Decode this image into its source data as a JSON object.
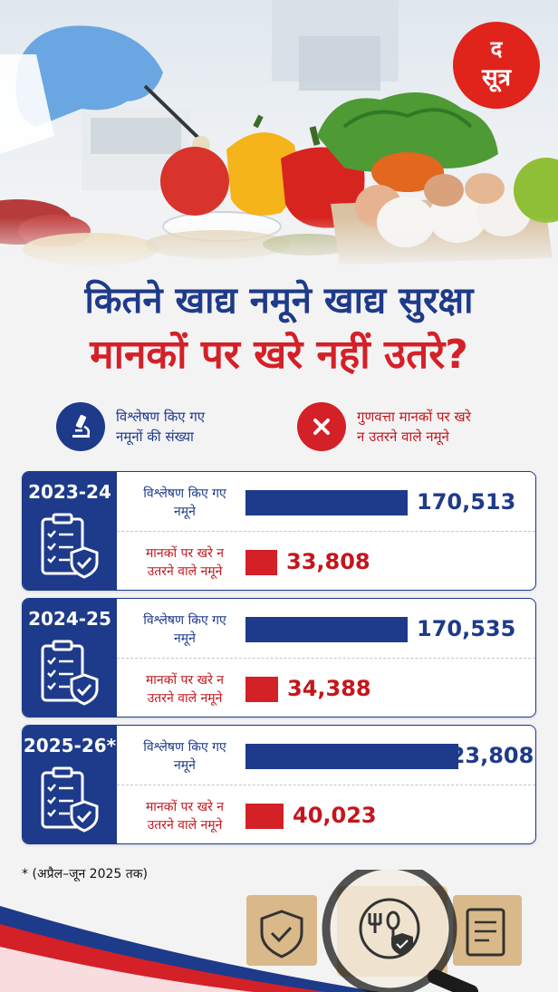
{
  "logo": {
    "top": "द",
    "bottom": "सूत्र"
  },
  "title": {
    "line1": "कितने खाद्य नमूने खाद्य सुरक्षा",
    "line2": "मानकों पर खरे नहीं उतरे?"
  },
  "legend": {
    "analyzed": {
      "icon": "microscope-icon",
      "line1": "विश्लेषण किए गए",
      "line2": "नमूनों की संख्या"
    },
    "failed": {
      "icon": "cross-icon",
      "line1": "गुणवत्ता मानकों पर खरे",
      "line2": "न उतरने वाले नमूने"
    }
  },
  "colors": {
    "blue": "#1e3a8a",
    "red": "#d42027"
  },
  "chart_data": {
    "type": "bar",
    "orientation": "horizontal",
    "title": "कितने खाद्य नमूने खाद्य सुरक्षा मानकों पर खरे नहीं उतरे?",
    "categories": [
      "2023-24",
      "2024-25",
      "2025-26*"
    ],
    "series": [
      {
        "name": "विश्लेषण किए गए नमूने",
        "label_line1": "विश्लेषण किए गए",
        "label_line2": "नमूने",
        "values": [
          170513,
          170535,
          223808
        ],
        "value_labels": [
          "170,513",
          "170,535",
          "223,808"
        ]
      },
      {
        "name": "मानकों पर खरे न उतरने वाले नमूने",
        "label_line1": "मानकों पर खरे न",
        "label_line2": "उतरने वाले नमूने",
        "values": [
          33808,
          34388,
          40023
        ],
        "value_labels": [
          "33,808",
          "34,388",
          "40,023"
        ]
      }
    ],
    "footnote": "* (अप्रैल–जून 2025 तक)"
  }
}
